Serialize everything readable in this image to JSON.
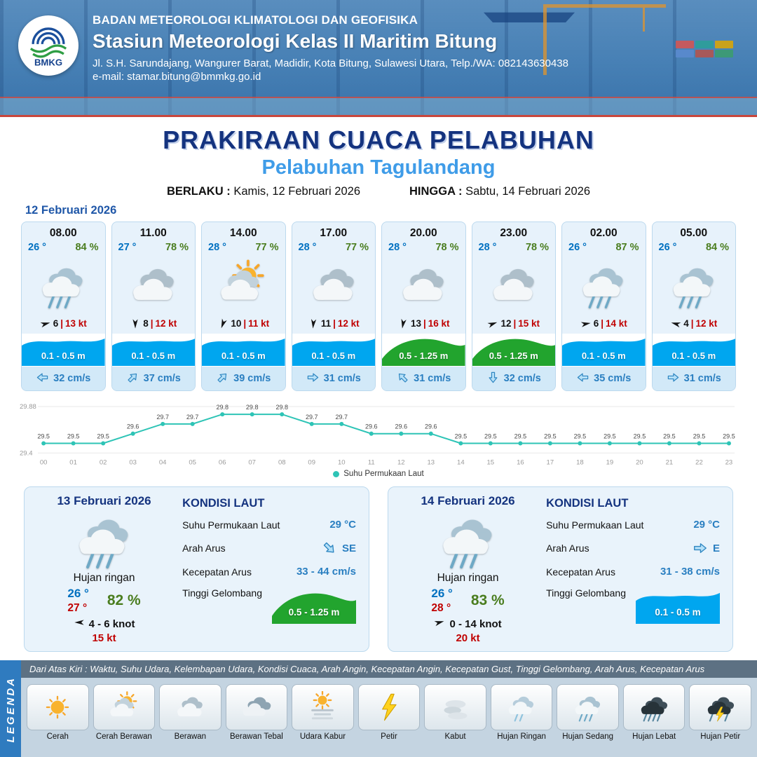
{
  "header": {
    "org": "BADAN METEOROLOGI KLIMATOLOGI DAN GEOFISIKA",
    "station": "Stasiun Meteorologi Kelas II Maritim Bitung",
    "address": "Jl. S.H. Sarundajang, Wangurer Barat, Madidir, Kota Bitung, Sulawesi Utara, Telp./WA: 082143630438",
    "email": "e-mail: stamar.bitung@bmmkg.go.id",
    "logo_text": "BMKG"
  },
  "title": {
    "main": "PRAKIRAAN CUACA PELABUHAN",
    "sub": "Pelabuhan Tagulandang",
    "berlaku_label": "BERLAKU :",
    "berlaku_value": "Kamis, 12 Februari 2026",
    "hingga_label": "HINGGA :",
    "hingga_value": "Sabtu, 14 Februari 2026"
  },
  "day1_label": "12 Februari 2026",
  "hourly": [
    {
      "time": "08.00",
      "temp": "26 °",
      "rh": "84 %",
      "icon": "hujan-sedang",
      "wind_rot": -15,
      "wind": "6",
      "gust": "13 kt",
      "wave": "0.1 - 0.5 m",
      "wave_level": "low",
      "cur_rot": 180,
      "current": "32 cm/s"
    },
    {
      "time": "11.00",
      "temp": "27 °",
      "rh": "78 %",
      "icon": "berawan",
      "wind_rot": 90,
      "wind": "8",
      "gust": "12 kt",
      "wave": "0.1 - 0.5 m",
      "wave_level": "low",
      "cur_rot": -45,
      "current": "37 cm/s"
    },
    {
      "time": "14.00",
      "temp": "28 °",
      "rh": "77 %",
      "icon": "cerah-berawan",
      "wind_rot": 110,
      "wind": "10",
      "gust": "11 kt",
      "wave": "0.1 - 0.5 m",
      "wave_level": "low",
      "cur_rot": -45,
      "current": "39 cm/s"
    },
    {
      "time": "17.00",
      "temp": "28 °",
      "rh": "77 %",
      "icon": "berawan",
      "wind_rot": 95,
      "wind": "11",
      "gust": "12 kt",
      "wave": "0.1 - 0.5 m",
      "wave_level": "low",
      "cur_rot": 0,
      "current": "31 cm/s"
    },
    {
      "time": "20.00",
      "temp": "28 °",
      "rh": "78 %",
      "icon": "berawan",
      "wind_rot": 100,
      "wind": "13",
      "gust": "16 kt",
      "wave": "0.5 - 1.25 m",
      "wave_level": "mid",
      "cur_rot": -135,
      "current": "31 cm/s"
    },
    {
      "time": "23.00",
      "temp": "28 °",
      "rh": "78 %",
      "icon": "berawan",
      "wind_rot": -20,
      "wind": "12",
      "gust": "15 kt",
      "wave": "0.5 - 1.25 m",
      "wave_level": "mid",
      "cur_rot": 90,
      "current": "32 cm/s"
    },
    {
      "time": "02.00",
      "temp": "26 °",
      "rh": "87 %",
      "icon": "hujan-sedang",
      "wind_rot": -10,
      "wind": "6",
      "gust": "14 kt",
      "wave": "0.1 - 0.5 m",
      "wave_level": "low",
      "cur_rot": 180,
      "current": "35 cm/s"
    },
    {
      "time": "05.00",
      "temp": "26 °",
      "rh": "84 %",
      "icon": "hujan-sedang",
      "wind_rot": 195,
      "wind": "4",
      "gust": "12 kt",
      "wave": "0.1 - 0.5 m",
      "wave_level": "low",
      "cur_rot": 0,
      "current": "31 cm/s"
    }
  ],
  "chart_data": {
    "type": "line",
    "title": "",
    "x": [
      "00",
      "01",
      "02",
      "03",
      "04",
      "05",
      "06",
      "07",
      "08",
      "09",
      "10",
      "11",
      "12",
      "13",
      "14",
      "15",
      "16",
      "17",
      "18",
      "19",
      "20",
      "21",
      "22",
      "23"
    ],
    "values": [
      29.5,
      29.5,
      29.5,
      29.6,
      29.7,
      29.7,
      29.8,
      29.8,
      29.8,
      29.7,
      29.7,
      29.6,
      29.6,
      29.6,
      29.5,
      29.5,
      29.5,
      29.5,
      29.5,
      29.5,
      29.5,
      29.5,
      29.5,
      29.5
    ],
    "ylim": [
      29.4,
      29.88
    ],
    "y_ticks": [
      "29.88",
      "29.4"
    ],
    "series_name": "Suhu Permukaan Laut",
    "line_color": "#2ec4b6",
    "grid": "minimal",
    "legend_position": "bottom"
  },
  "daily": [
    {
      "date": "13 Februari 2026",
      "icon": "hujan-sedang",
      "condition": "Hujan ringan",
      "temp_min": "26 °",
      "temp_max": "27 °",
      "rh": "82 %",
      "wind_rot": 180,
      "wind_range": "4 - 6 knot",
      "gust": "15 kt",
      "sea_title": "KONDISI LAUT",
      "sst_label": "Suhu Permukaan Laut",
      "sst": "29 °C",
      "dir_label": "Arah Arus",
      "dir": "SE",
      "dir_rot": 45,
      "cur_label": "Kecepatan Arus",
      "cur": "33 - 44 cm/s",
      "wave_label": "Tinggi Gelombang",
      "wave": "0.5 - 1.25 m",
      "wave_level": "mid"
    },
    {
      "date": "14 Februari 2026",
      "icon": "hujan-sedang",
      "condition": "Hujan ringan",
      "temp_min": "26 °",
      "temp_max": "28 °",
      "rh": "83 %",
      "wind_rot": -15,
      "wind_range": "0 - 14 knot",
      "gust": "20 kt",
      "sea_title": "KONDISI LAUT",
      "sst_label": "Suhu Permukaan Laut",
      "sst": "29 °C",
      "dir_label": "Arah Arus",
      "dir": "E",
      "dir_rot": 0,
      "cur_label": "Kecepatan Arus",
      "cur": "31 - 38 cm/s",
      "wave_label": "Tinggi Gelombang",
      "wave": "0.1 - 0.5 m",
      "wave_level": "low"
    }
  ],
  "legend": {
    "title": "LEGENDA",
    "description": "Dari Atas Kiri : Waktu, Suhu Udara, Kelembapan Udara, Kondisi Cuaca, Arah Angin, Kecepatan Angin, Kecepatan Gust, Tinggi Gelombang, Arah Arus, Kecepatan Arus",
    "items": [
      {
        "label": "Cerah",
        "icon": "cerah"
      },
      {
        "label": "Cerah Berawan",
        "icon": "cerah-berawan"
      },
      {
        "label": "Berawan",
        "icon": "berawan"
      },
      {
        "label": "Berawan Tebal",
        "icon": "berawan-tebal"
      },
      {
        "label": "Udara Kabur",
        "icon": "udara-kabur"
      },
      {
        "label": "Petir",
        "icon": "petir"
      },
      {
        "label": "Kabut",
        "icon": "kabut"
      },
      {
        "label": "Hujan Ringan",
        "icon": "hujan-ringan"
      },
      {
        "label": "Hujan Sedang",
        "icon": "hujan-sedang"
      },
      {
        "label": "Hujan Lebat",
        "icon": "hujan-lebat"
      },
      {
        "label": "Hujan Petir",
        "icon": "hujan-petir"
      }
    ]
  },
  "colors": {
    "navy": "#14337f",
    "sub_blue": "#3f9ce8",
    "temp_blue": "#0070c0",
    "rh_green": "#4a7d1f",
    "red": "#c00000",
    "wave_blue": "#00a6ef",
    "wave_green": "#22a42e",
    "current_blue": "#2a7fc1",
    "chart_teal": "#2ec4b6"
  }
}
